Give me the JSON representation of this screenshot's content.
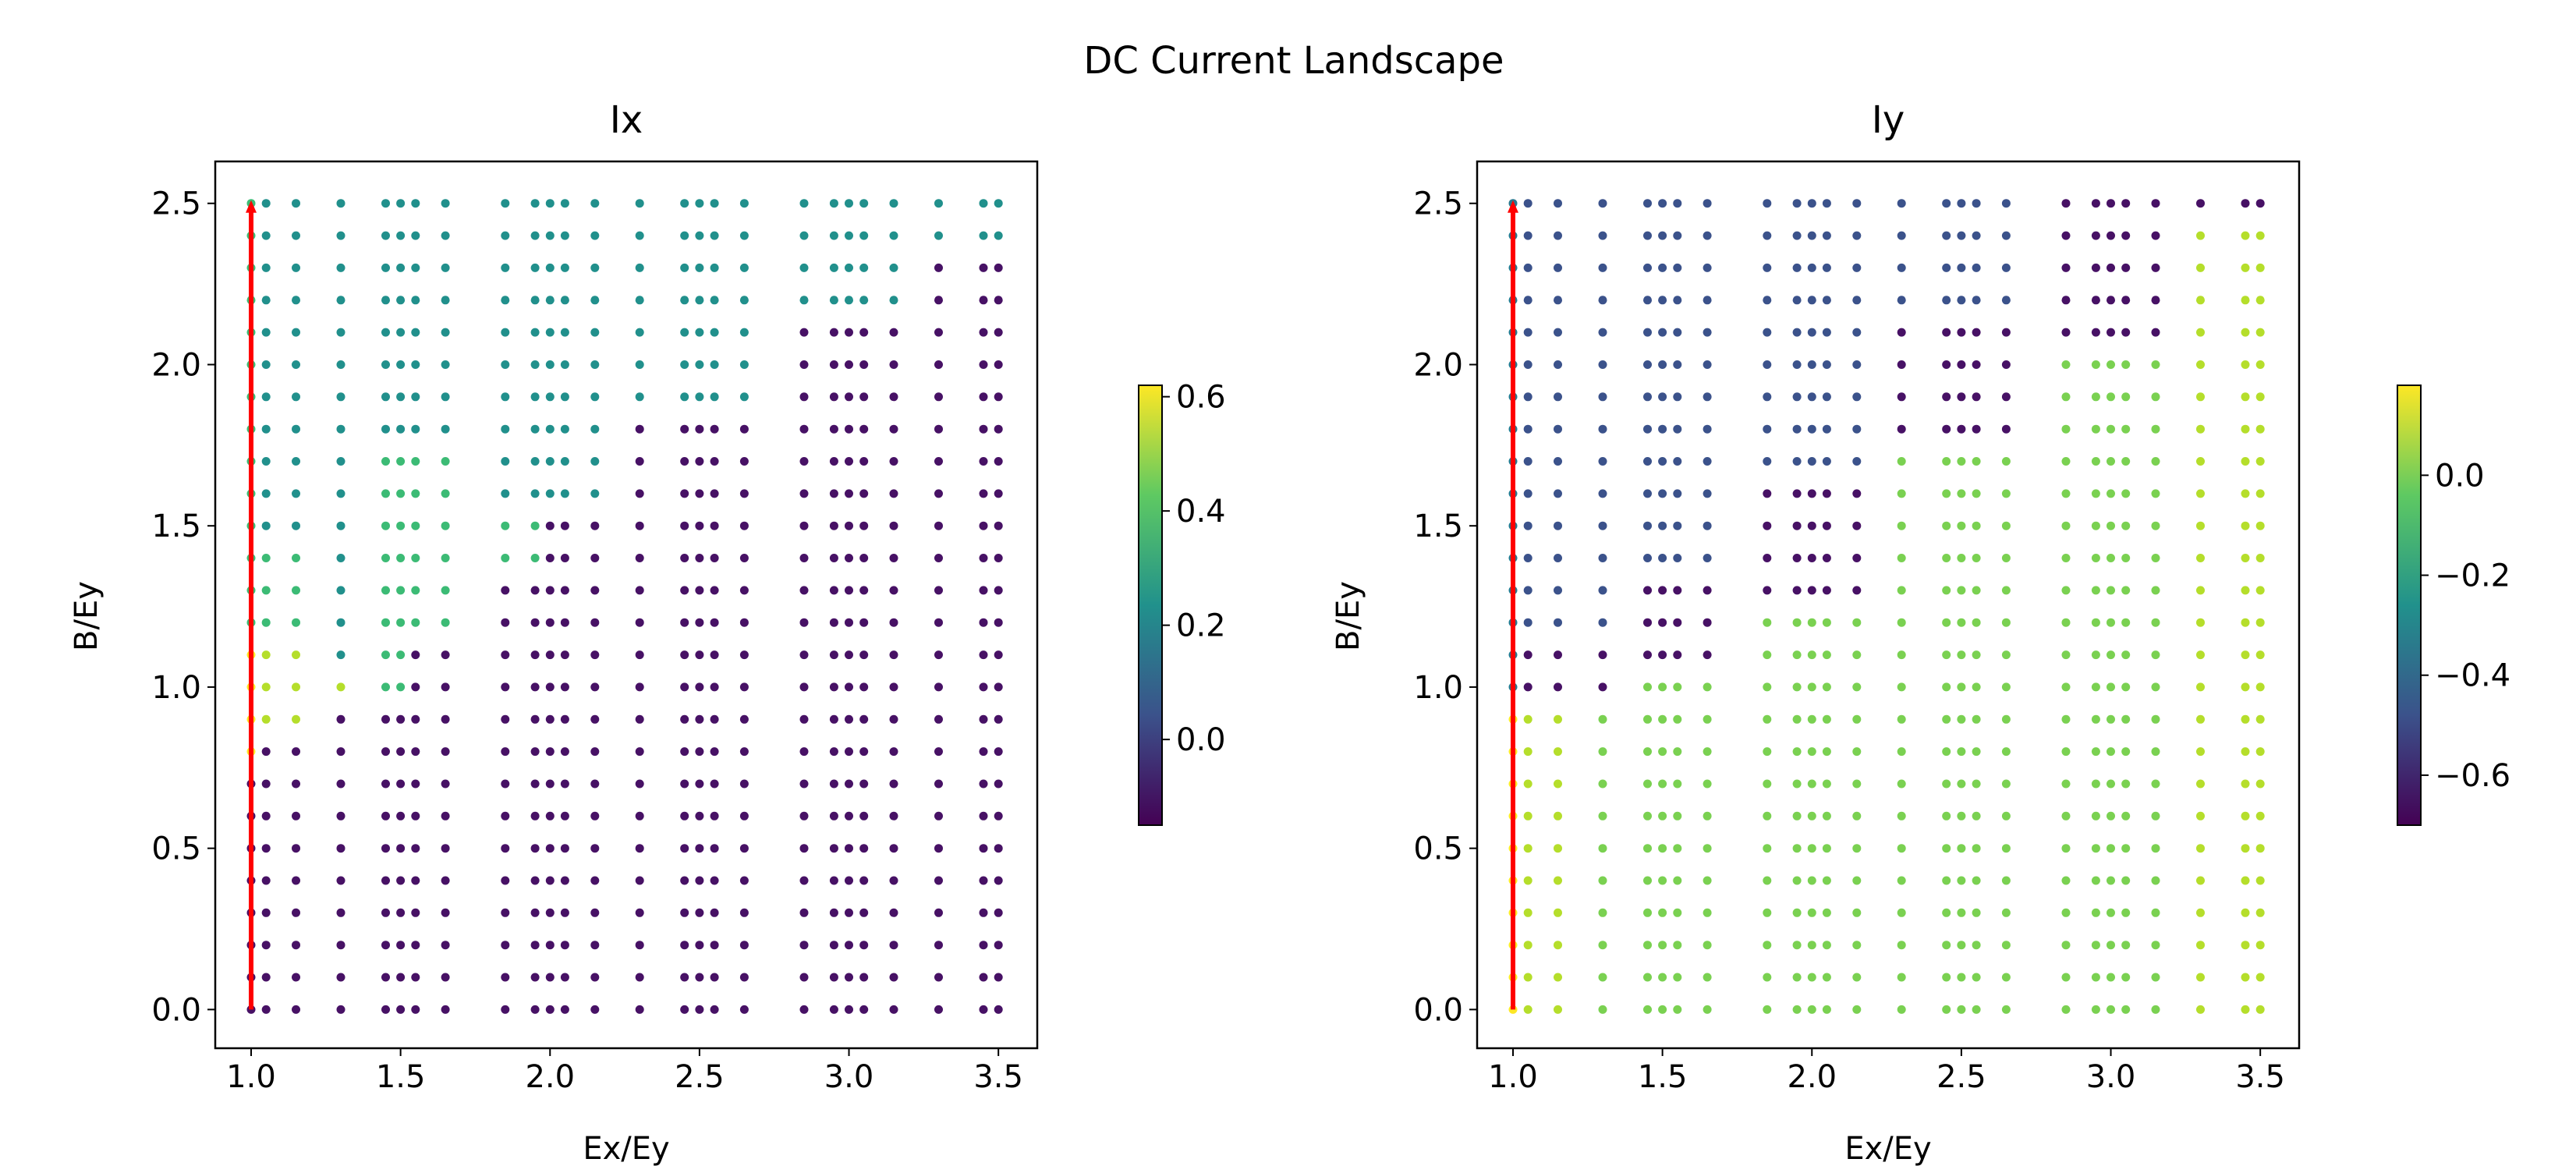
{
  "figure": {
    "suptitle": "DC Current Landscape"
  },
  "colors": {
    "arrow": "#ff0000",
    "axes": "#000000"
  },
  "chart_data": [
    {
      "type": "scatter",
      "title": "Ix",
      "xlabel": "Ex/Ey",
      "ylabel": "B/Ey",
      "xlim": [
        0.88,
        3.63
      ],
      "ylim": [
        -0.12,
        2.63
      ],
      "xticks": [
        "1.0",
        "1.5",
        "2.0",
        "2.5",
        "3.0",
        "3.5"
      ],
      "yticks": [
        "0.0",
        "0.5",
        "1.0",
        "1.5",
        "2.0",
        "2.5"
      ],
      "grid": false,
      "colormap": "viridis",
      "x": [
        1.0,
        1.05,
        1.15,
        1.3,
        1.45,
        1.5,
        1.55,
        1.65,
        1.85,
        1.95,
        2.0,
        2.05,
        2.15,
        2.3,
        2.45,
        2.5,
        2.55,
        2.65,
        2.85,
        2.95,
        3.0,
        3.05,
        3.15,
        3.3,
        3.45,
        3.5
      ],
      "y": [
        0.0,
        0.1,
        0.2,
        0.3,
        0.4,
        0.5,
        0.6,
        0.7,
        0.8,
        0.9,
        1.0,
        1.1,
        1.2,
        1.3,
        1.4,
        1.5,
        1.6,
        1.7,
        1.8,
        1.9,
        2.0,
        2.1,
        2.2,
        2.3,
        2.4,
        2.5
      ],
      "colorbar": {
        "range": [
          -0.15,
          0.62
        ],
        "ticks": [
          "0.0",
          "0.2",
          "0.4",
          "0.6"
        ]
      },
      "arrow": {
        "x": 1.0,
        "from_y": 0.0,
        "to_y": 2.5
      }
    },
    {
      "type": "scatter",
      "title": "Iy",
      "xlabel": "Ex/Ey",
      "ylabel": "B/Ey",
      "xlim": [
        0.88,
        3.63
      ],
      "ylim": [
        -0.12,
        2.63
      ],
      "xticks": [
        "1.0",
        "1.5",
        "2.0",
        "2.5",
        "3.0",
        "3.5"
      ],
      "yticks": [
        "0.0",
        "0.5",
        "1.0",
        "1.5",
        "2.0",
        "2.5"
      ],
      "grid": false,
      "colormap": "viridis",
      "x": [
        1.0,
        1.05,
        1.15,
        1.3,
        1.45,
        1.5,
        1.55,
        1.65,
        1.85,
        1.95,
        2.0,
        2.05,
        2.15,
        2.3,
        2.45,
        2.5,
        2.55,
        2.65,
        2.85,
        2.95,
        3.0,
        3.05,
        3.15,
        3.3,
        3.45,
        3.5
      ],
      "y": [
        0.0,
        0.1,
        0.2,
        0.3,
        0.4,
        0.5,
        0.6,
        0.7,
        0.8,
        0.9,
        1.0,
        1.1,
        1.2,
        1.3,
        1.4,
        1.5,
        1.6,
        1.7,
        1.8,
        1.9,
        2.0,
        2.1,
        2.2,
        2.3,
        2.4,
        2.5
      ],
      "colorbar": {
        "range": [
          -0.7,
          0.18
        ],
        "ticks": [
          "0.0",
          "−0.2",
          "−0.4",
          "−0.6"
        ]
      },
      "arrow": {
        "x": 1.0,
        "from_y": 0.0,
        "to_y": 2.5
      }
    }
  ]
}
